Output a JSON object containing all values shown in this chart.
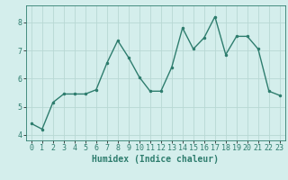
{
  "x": [
    0,
    1,
    2,
    3,
    4,
    5,
    6,
    7,
    8,
    9,
    10,
    11,
    12,
    13,
    14,
    15,
    16,
    17,
    18,
    19,
    20,
    21,
    22,
    23
  ],
  "y": [
    4.4,
    4.2,
    5.15,
    5.45,
    5.45,
    5.45,
    5.6,
    6.55,
    7.35,
    6.75,
    6.05,
    5.55,
    5.55,
    6.4,
    7.8,
    7.05,
    7.45,
    8.2,
    6.85,
    7.5,
    7.5,
    7.05,
    5.55,
    5.4
  ],
  "line_color": "#2e7d6e",
  "marker": ".",
  "marker_size": 3,
  "background_color": "#d4eeec",
  "grid_color": "#b8d8d4",
  "xlabel": "Humidex (Indice chaleur)",
  "xlim": [
    -0.5,
    23.5
  ],
  "ylim": [
    3.8,
    8.6
  ],
  "yticks": [
    4,
    5,
    6,
    7,
    8
  ],
  "xticks": [
    0,
    1,
    2,
    3,
    4,
    5,
    6,
    7,
    8,
    9,
    10,
    11,
    12,
    13,
    14,
    15,
    16,
    17,
    18,
    19,
    20,
    21,
    22,
    23
  ],
  "xlabel_fontsize": 7,
  "tick_fontsize": 6,
  "line_width": 1.0
}
